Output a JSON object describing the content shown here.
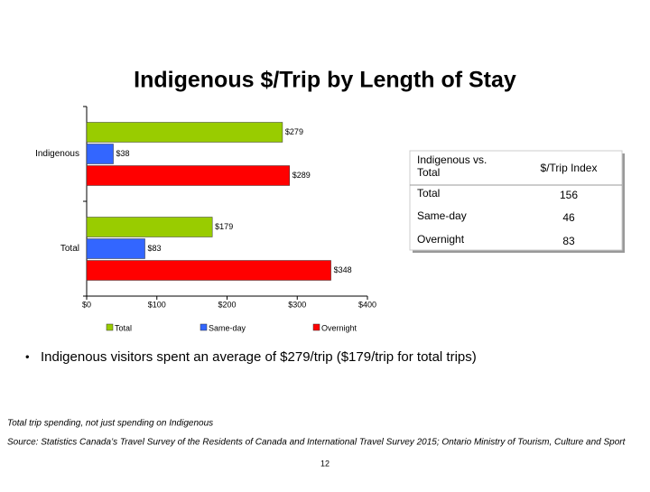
{
  "chart_data": {
    "type": "bar",
    "orientation": "horizontal",
    "title": "Indigenous $/Trip by Length of Stay",
    "categories": [
      "Indigenous",
      "Total"
    ],
    "series": [
      {
        "name": "Total",
        "color": "#99cc00",
        "values": [
          279,
          179
        ],
        "value_labels": [
          "$279",
          "$179"
        ]
      },
      {
        "name": "Same-day",
        "color": "#3366ff",
        "values": [
          38,
          83
        ],
        "value_labels": [
          "$38",
          "$83"
        ]
      },
      {
        "name": "Overnight",
        "color": "#ff0000",
        "values": [
          289,
          348
        ],
        "value_labels": [
          "$289",
          "$348"
        ]
      }
    ],
    "xlim": [
      0,
      400
    ],
    "xticks": [
      {
        "value": 0,
        "label": "$0"
      },
      {
        "value": 100,
        "label": "$100"
      },
      {
        "value": 200,
        "label": "$200"
      },
      {
        "value": 300,
        "label": "$300"
      },
      {
        "value": 400,
        "label": "$400"
      }
    ],
    "legend": "bottom"
  },
  "table": {
    "header": [
      "Indigenous vs. Total",
      "$/Trip Index"
    ],
    "rows": [
      [
        "Total",
        156
      ],
      [
        "Same-day",
        46
      ],
      [
        "Overnight",
        83
      ]
    ]
  },
  "bullet": "Indigenous visitors spent an average of $279/trip ($179/trip for total trips)",
  "footnote": "Total trip spending, not just spending on Indigenous",
  "source": "Source: Statistics Canada’s Travel Survey of the Residents of Canada and International Travel Survey 2015; Ontario Ministry of Tourism, Culture and Sport",
  "page_number": "12"
}
